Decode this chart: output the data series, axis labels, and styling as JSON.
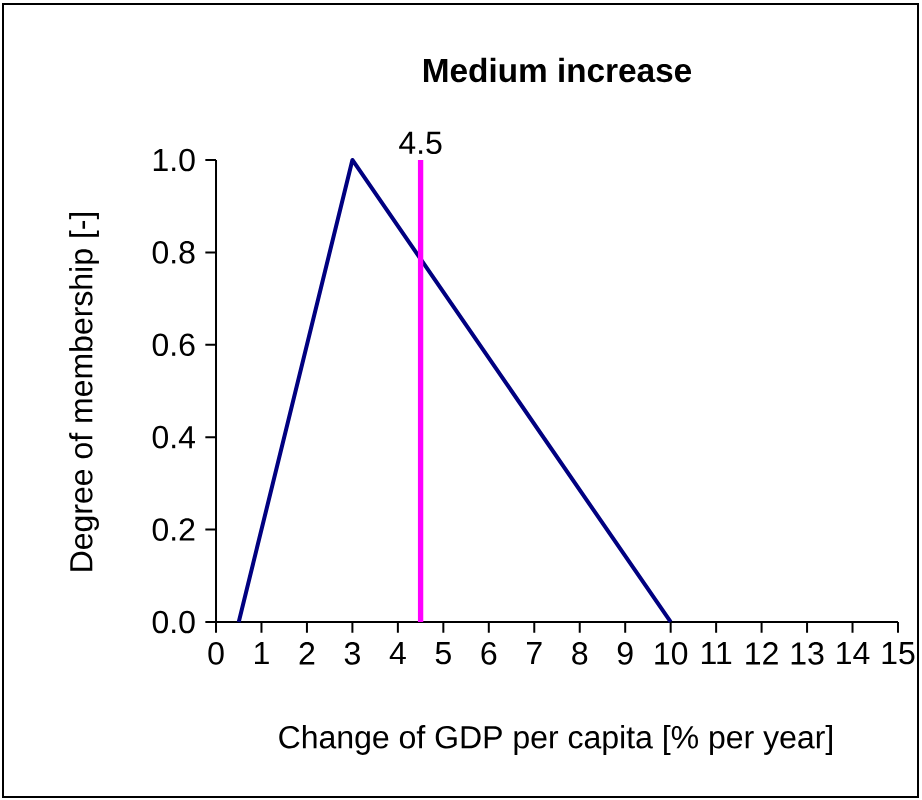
{
  "chart_data": {
    "type": "line",
    "title": "Medium increase",
    "xlabel": "Change of GDP per capita [% per year]",
    "ylabel": "Degree of membership [-]",
    "x": [
      0.5,
      3,
      10
    ],
    "series": [
      {
        "color": "#000080",
        "values": [
          0,
          1,
          0
        ]
      }
    ],
    "xlim": [
      0,
      15
    ],
    "xticks": [
      0,
      1,
      2,
      3,
      4,
      5,
      6,
      7,
      8,
      9,
      10,
      11,
      12,
      13,
      14,
      15
    ],
    "ylim": [
      0,
      1
    ],
    "yticks": [
      {
        "value": 0,
        "label": "0.0"
      },
      {
        "value": 0.2,
        "label": "0.2"
      },
      {
        "value": 0.4,
        "label": "0.4"
      },
      {
        "value": 0.6,
        "label": "0.6"
      },
      {
        "value": 0.8,
        "label": "0.8"
      },
      {
        "value": 1,
        "label": "1.0"
      }
    ],
    "ref_lines": [
      {
        "axis": "x",
        "value": 4.5,
        "label": "4.5",
        "color": "#ff00ff"
      }
    ],
    "marker": "none",
    "line_style": "solid"
  }
}
